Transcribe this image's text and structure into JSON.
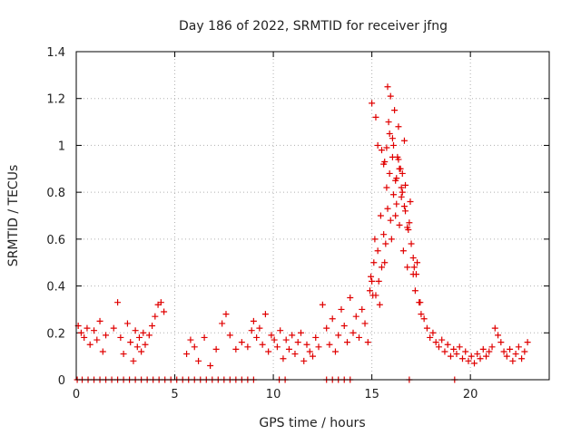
{
  "chart_data": {
    "type": "scatter",
    "title": "Day 186 of 2022, SRMTID for receiver jfng",
    "xlabel": "GPS time / hours",
    "ylabel": "SRMTID / TECUs",
    "xlim": [
      0,
      24
    ],
    "ylim": [
      0,
      1.4
    ],
    "x_ticks": [
      "0",
      "5",
      "10",
      "15",
      "20"
    ],
    "y_ticks": [
      "0",
      "0.2",
      "0.4",
      "0.6",
      "0.8",
      "1",
      "1.2",
      "1.4"
    ],
    "grid": true,
    "marker": "+",
    "color": "#e00000",
    "series": [
      {
        "name": "SRMTID",
        "x": [
          0.1,
          0.25,
          0.4,
          0.55,
          0.7,
          0.9,
          1.05,
          1.2,
          1.35,
          1.5,
          1.9,
          2.1,
          2.25,
          2.4,
          2.6,
          2.75,
          2.9,
          3.0,
          3.1,
          3.2,
          3.3,
          3.4,
          3.5,
          3.7,
          3.85,
          4.0,
          4.15,
          4.3,
          4.45,
          5.6,
          5.8,
          6.0,
          6.2,
          6.5,
          6.8,
          7.1,
          7.4,
          7.6,
          7.8,
          8.1,
          8.4,
          8.7,
          8.9,
          9.0,
          9.15,
          9.3,
          9.45,
          9.6,
          9.75,
          9.9,
          10.05,
          10.2,
          10.35,
          10.5,
          10.65,
          10.8,
          10.95,
          11.1,
          11.25,
          11.4,
          11.55,
          11.7,
          11.85,
          12.0,
          12.15,
          12.3,
          12.5,
          12.7,
          12.85,
          13.0,
          13.15,
          13.3,
          13.45,
          13.6,
          13.75,
          13.9,
          14.05,
          14.2,
          14.35,
          14.5,
          14.65,
          14.8,
          14.9,
          15.0,
          15.1,
          15.2,
          15.3,
          15.4,
          15.5,
          15.6,
          15.7,
          15.8,
          15.9,
          16.0,
          16.1,
          16.2,
          16.3,
          16.4,
          16.5,
          16.6,
          16.7,
          16.8,
          16.9,
          17.0,
          17.1,
          17.2,
          17.3,
          17.4,
          17.5,
          17.65,
          17.8,
          17.95,
          18.1,
          18.25,
          18.4,
          18.55,
          18.7,
          18.85,
          19.0,
          19.15,
          19.3,
          19.45,
          19.6,
          19.75,
          19.9,
          20.05,
          20.2,
          20.35,
          20.5,
          20.65,
          20.8,
          20.95,
          21.1,
          21.25,
          21.4,
          21.55,
          21.7,
          21.85,
          22.0,
          22.15,
          22.3,
          22.45,
          22.6,
          22.75,
          22.9,
          0.05,
          0.3,
          0.6,
          0.9,
          1.2,
          1.5,
          1.8,
          2.1,
          2.4,
          2.7,
          3.0,
          3.3,
          3.6,
          3.9,
          4.2,
          4.5,
          4.8,
          5.1,
          5.4,
          5.7,
          6.0,
          6.3,
          6.6,
          6.9,
          7.2,
          7.5,
          7.8,
          8.1,
          8.4,
          8.7,
          9.0,
          10.3,
          10.6,
          12.7,
          13.0,
          13.3,
          13.6,
          13.9,
          16.9,
          19.2,
          15.0,
          15.3,
          15.6,
          15.9,
          16.2,
          16.5,
          16.8,
          17.1,
          15.2,
          15.5,
          15.8,
          16.1,
          16.4,
          16.7,
          14.95,
          15.15,
          15.45,
          15.75,
          16.05,
          16.35,
          16.65,
          16.95,
          17.25,
          15.05,
          15.35,
          15.65,
          15.95,
          16.25,
          16.55,
          16.85,
          17.15,
          17.45,
          15.95,
          16.15,
          16.35,
          15.85,
          16.45,
          16.05,
          16.25,
          15.75,
          16.55,
          15.65,
          16.65
        ],
        "y": [
          0.23,
          0.2,
          0.18,
          0.22,
          0.15,
          0.21,
          0.17,
          0.25,
          0.12,
          0.19,
          0.22,
          0.33,
          0.18,
          0.11,
          0.24,
          0.16,
          0.08,
          0.21,
          0.14,
          0.18,
          0.12,
          0.2,
          0.15,
          0.19,
          0.23,
          0.27,
          0.32,
          0.33,
          0.29,
          0.11,
          0.17,
          0.14,
          0.08,
          0.18,
          0.06,
          0.13,
          0.24,
          0.28,
          0.19,
          0.13,
          0.16,
          0.14,
          0.21,
          0.25,
          0.18,
          0.22,
          0.15,
          0.28,
          0.12,
          0.19,
          0.17,
          0.14,
          0.21,
          0.09,
          0.17,
          0.13,
          0.19,
          0.11,
          0.16,
          0.2,
          0.08,
          0.15,
          0.12,
          0.1,
          0.18,
          0.14,
          0.32,
          0.22,
          0.15,
          0.26,
          0.12,
          0.19,
          0.3,
          0.23,
          0.16,
          0.35,
          0.2,
          0.27,
          0.18,
          0.3,
          0.24,
          0.16,
          0.38,
          0.42,
          0.5,
          0.36,
          0.55,
          0.32,
          0.48,
          0.62,
          0.58,
          0.73,
          0.88,
          0.6,
          0.79,
          0.7,
          0.95,
          0.66,
          0.82,
          0.55,
          0.72,
          0.48,
          0.67,
          0.58,
          0.45,
          0.38,
          0.5,
          0.33,
          0.28,
          0.26,
          0.22,
          0.18,
          0.2,
          0.16,
          0.14,
          0.17,
          0.12,
          0.15,
          0.1,
          0.13,
          0.11,
          0.14,
          0.09,
          0.12,
          0.08,
          0.1,
          0.07,
          0.11,
          0.09,
          0.13,
          0.1,
          0.12,
          0.14,
          0.22,
          0.19,
          0.16,
          0.12,
          0.1,
          0.13,
          0.08,
          0.11,
          0.14,
          0.09,
          0.12,
          0.16,
          0.0,
          0.0,
          0.0,
          0.0,
          0.0,
          0.0,
          0.0,
          0.0,
          0.0,
          0.0,
          0.0,
          0.0,
          0.0,
          0.0,
          0.0,
          0.0,
          0.0,
          0.0,
          0.0,
          0.0,
          0.0,
          0.0,
          0.0,
          0.0,
          0.0,
          0.0,
          0.0,
          0.0,
          0.0,
          0.0,
          0.0,
          0.0,
          0.0,
          0.0,
          0.0,
          0.0,
          0.0,
          0.0,
          0.0,
          0.0,
          1.18,
          1.0,
          0.92,
          1.05,
          0.85,
          0.78,
          0.65,
          0.52,
          1.12,
          0.98,
          1.25,
          1.0,
          0.9,
          0.83,
          0.44,
          0.6,
          0.7,
          0.82,
          0.95,
          1.08,
          1.02,
          0.76,
          0.45,
          0.36,
          0.42,
          0.5,
          0.68,
          0.75,
          0.88,
          0.64,
          0.48,
          0.33,
          1.21,
          1.15,
          0.94,
          1.1,
          0.9,
          1.03,
          0.86,
          0.99,
          0.8,
          0.93,
          0.74
        ]
      }
    ]
  }
}
